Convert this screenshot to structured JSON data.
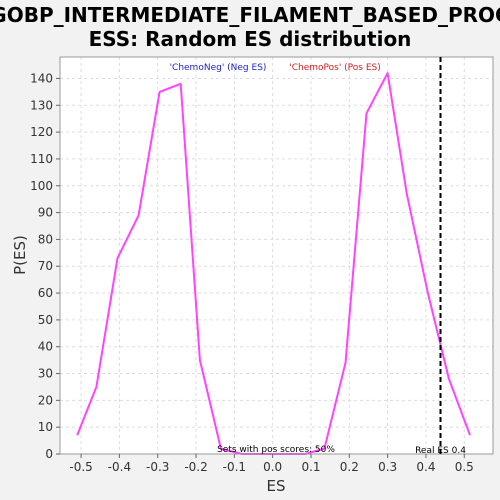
{
  "chart_data": {
    "type": "line",
    "title_lines": [
      "GOBP_INTERMEDIATE_FILAMENT_BASED_PROC",
      "ESS: Random ES distribution"
    ],
    "xlabel": "ES",
    "ylabel": "P(ES)",
    "xlim": [
      -0.555,
      0.575
    ],
    "ylim": [
      0,
      148
    ],
    "x_ticks": [
      -0.5,
      -0.4,
      -0.3,
      -0.2,
      -0.1,
      0.0,
      0.1,
      0.2,
      0.3,
      0.4,
      0.5
    ],
    "x_tick_labels": [
      "-0.5",
      "-0.4",
      "-0.3",
      "-0.2",
      "-0.1",
      "0.0",
      "0.1",
      "0.2",
      "0.3",
      "0.4",
      "0.5"
    ],
    "y_ticks": [
      0,
      10,
      20,
      30,
      40,
      50,
      60,
      70,
      80,
      90,
      100,
      110,
      120,
      130,
      140
    ],
    "y_tick_labels": [
      "0",
      "10",
      "20",
      "30",
      "40",
      "50",
      "60",
      "70",
      "80",
      "90",
      "100",
      "110",
      "120",
      "130",
      "140"
    ],
    "grid": true,
    "line_color": "#ff44ff",
    "series": [
      {
        "x": [
          -0.51,
          -0.46,
          -0.405,
          -0.35,
          -0.295,
          -0.24,
          -0.19,
          -0.135,
          -0.08,
          -0.025,
          0.03,
          0.085,
          0.135,
          0.19,
          0.245,
          0.3,
          0.35,
          0.405,
          0.46,
          0.515
        ],
        "y": [
          7,
          25,
          73,
          89,
          135,
          138,
          35,
          2,
          0,
          0,
          0,
          0,
          2,
          34,
          127,
          142,
          97,
          60,
          28,
          7
        ]
      }
    ],
    "legend": [
      {
        "label": "'ChemoNeg' (Neg ES)",
        "color": "#2222cc"
      },
      {
        "label": "'ChemoPos' (Pos ES)",
        "color": "#cc2222"
      }
    ],
    "reference_line": {
      "x": 0.438,
      "label": "Real ES 0.4"
    },
    "annotation": "Sets with pos scores: 50%"
  }
}
